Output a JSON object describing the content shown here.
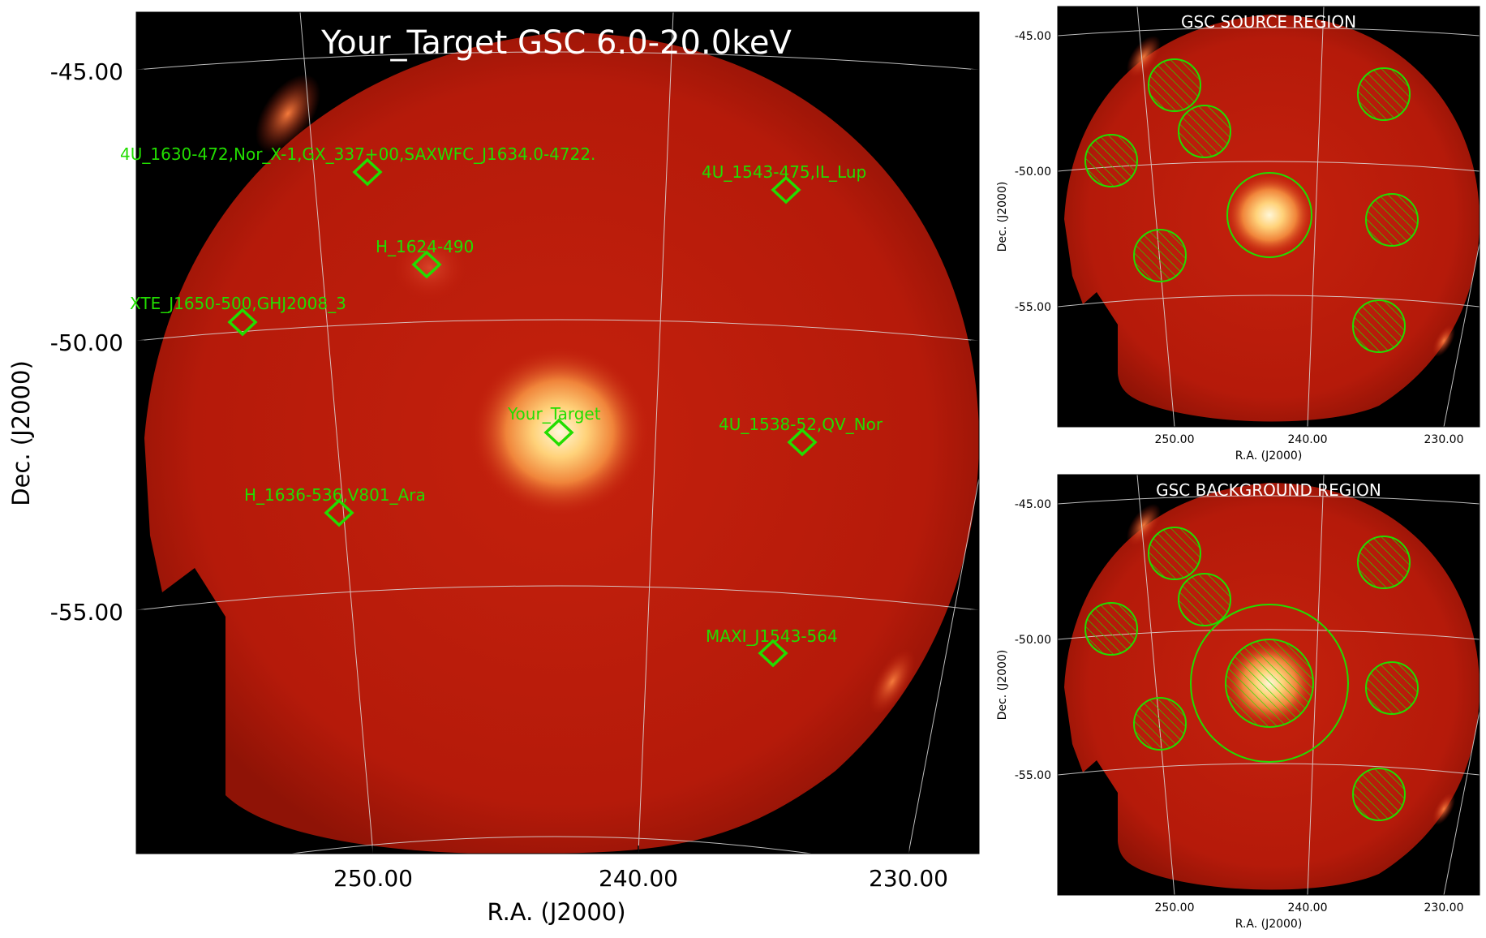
{
  "main": {
    "title": "Your_Target GSC 6.0-20.0keV",
    "xlabel": "R.A. (J2000)",
    "ylabel": "Dec. (J2000)",
    "y_ticks": [
      "-45.00",
      "-50.00",
      "-55.00"
    ],
    "x_ticks": [
      "250.00",
      "240.00",
      "230.00"
    ],
    "sources": [
      {
        "label": "4U_1630-472,Nor_X-1,GX_337+00,SAXWFC_J1634.0-4722."
      },
      {
        "label": "4U_1543-475,IL_Lup"
      },
      {
        "label": "H_1624-490"
      },
      {
        "label": "XTE_J1650-500,GHJ2008_3"
      },
      {
        "label": "Your_Target"
      },
      {
        "label": "4U_1538-52,QV_Nor"
      },
      {
        "label": "H_1636-536,V801_Ara"
      },
      {
        "label": "MAXI_J1543-564"
      }
    ]
  },
  "source_panel": {
    "title": "GSC SOURCE REGION",
    "xlabel": "R.A. (J2000)",
    "ylabel": "Dec. (J2000)",
    "y_ticks": [
      "-45.00",
      "-50.00",
      "-55.00"
    ],
    "x_ticks": [
      "250.00",
      "240.00",
      "230.00"
    ]
  },
  "background_panel": {
    "title": "GSC BACKGROUND REGION",
    "xlabel": "R.A. (J2000)",
    "ylabel": "Dec. (J2000)",
    "y_ticks": [
      "-45.00",
      "-50.00",
      "-55.00"
    ],
    "x_ticks": [
      "250.00",
      "240.00",
      "230.00"
    ]
  },
  "colors": {
    "marker": "#22dd00",
    "field": "#b81a0a",
    "grid": "#dddddd",
    "title_text": "#ffffff"
  }
}
